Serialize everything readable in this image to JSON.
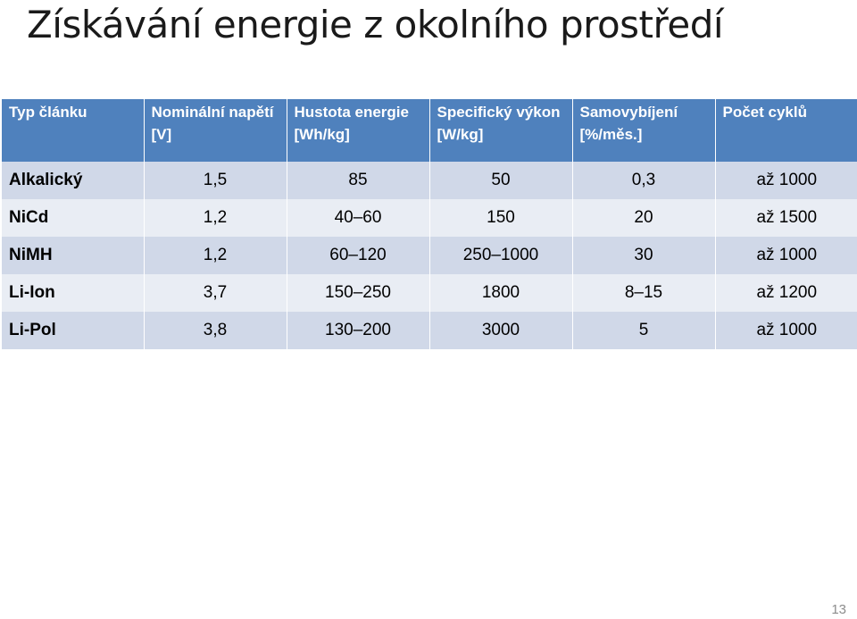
{
  "title": "Získávání energie z okolního prostředí",
  "table": {
    "headers": [
      "Typ článku",
      "Nominální napětí [V]",
      "Hustota energie [Wh/kg]",
      "Specifický výkon [W/kg]",
      "Samovybíjení [%/měs.]",
      "Počet cyklů"
    ],
    "rows": [
      [
        "Alkalický",
        "1,5",
        "85",
        "50",
        "0,3",
        "až 1000"
      ],
      [
        "NiCd",
        "1,2",
        "40–60",
        "150",
        "20",
        "až 1500"
      ],
      [
        "NiMH",
        "1,2",
        "60–120",
        "250–1000",
        "30",
        "až 1000"
      ],
      [
        "Li-Ion",
        "3,7",
        "150–250",
        "1800",
        "8–15",
        "až 1200"
      ],
      [
        "Li-Pol",
        "3,8",
        "130–200",
        "3000",
        "5",
        "až 1000"
      ]
    ]
  },
  "page_number": "13",
  "colors": {
    "header_bg": "#4f81bd",
    "row_odd_bg": "#d0d8e8",
    "row_even_bg": "#e9edf4"
  }
}
